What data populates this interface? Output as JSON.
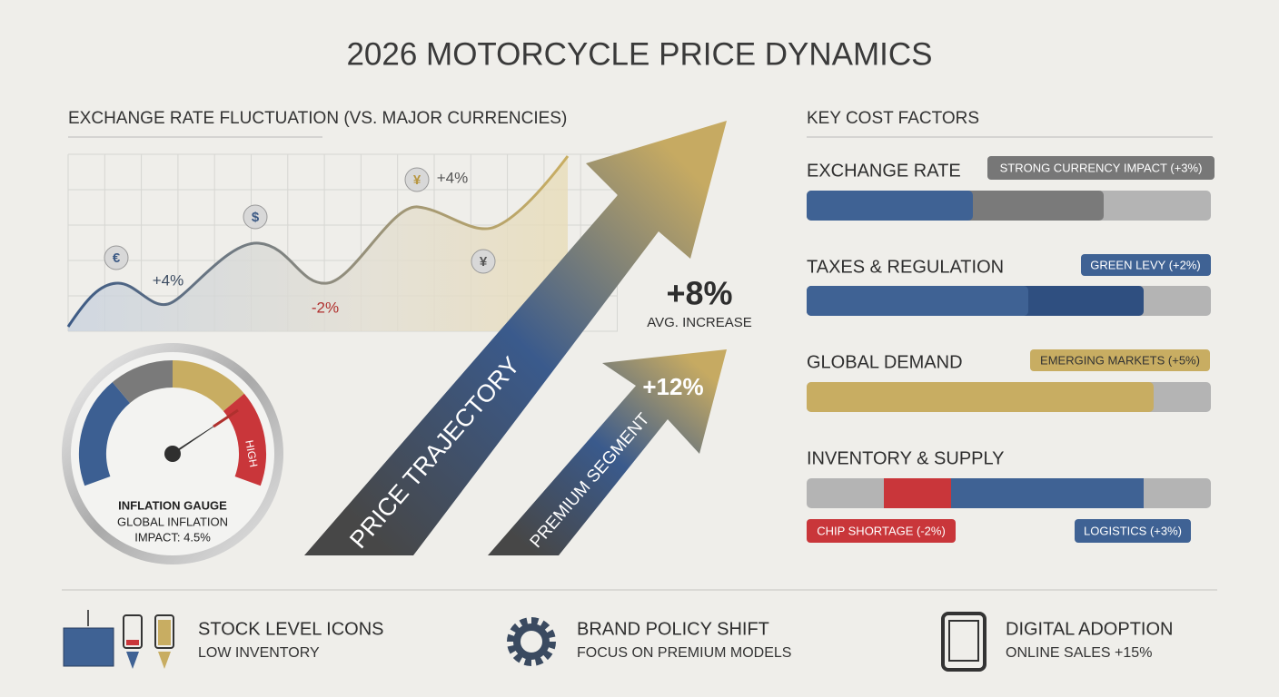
{
  "title": "2026 MOTORCYCLE PRICE DYNAMICS",
  "exchange_rate": {
    "heading": "EXCHANGE RATE FLUCTUATION (VS. MAJOR CURRENCIES)",
    "currencies": [
      "€",
      "$",
      "¥",
      "¥"
    ],
    "labels": [
      "+4%",
      "-2%",
      "+4%"
    ]
  },
  "gauge": {
    "title": "INFLATION GAUGE",
    "lines": [
      "GLOBAL INFLATION",
      "IMPACT: 4.5%"
    ],
    "zone_label": "HIGH"
  },
  "trajectory": {
    "main_label": "PRICE TRAJECTORY",
    "main_change": "+8%",
    "main_caption": "AVG. INCREASE",
    "premium_label": "PREMIUM SEGMENT",
    "premium_change": "+12%"
  },
  "cost_factors": {
    "heading": "KEY COST FACTORS",
    "items": [
      {
        "name": "EXCHANGE RATE",
        "tags": [
          "STRONG CURRENCY IMPACT (+3%)"
        ]
      },
      {
        "name": "TAXES & REGULATION",
        "tags": [
          "GREEN LEVY (+2%)"
        ]
      },
      {
        "name": "GLOBAL DEMAND",
        "tags": [
          "EMERGING MARKETS (+5%)"
        ]
      },
      {
        "name": "INVENTORY & SUPPLY",
        "tags": [
          "CHIP SHORTAGE (-2%)",
          "LOGISTICS (+3%)"
        ]
      }
    ]
  },
  "footer": [
    {
      "title": "STOCK LEVEL ICONS",
      "subtitle": "LOW INVENTORY"
    },
    {
      "title": "BRAND POLICY SHIFT",
      "subtitle": "FOCUS ON PREMIUM MODELS"
    },
    {
      "title": "DIGITAL ADOPTION",
      "subtitle": "ONLINE SALES +15%"
    }
  ]
}
